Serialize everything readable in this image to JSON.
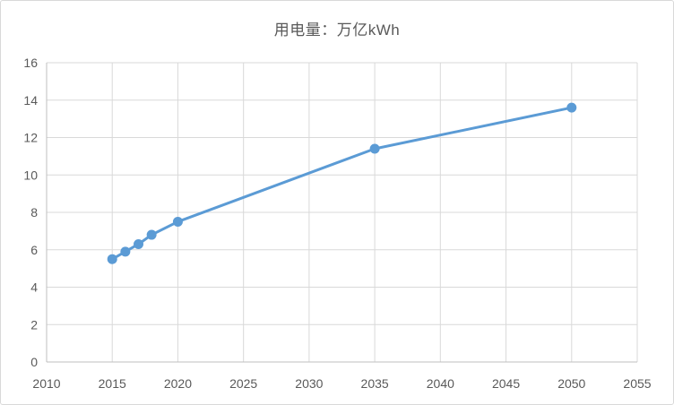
{
  "chart": {
    "title": "用电量：万亿kWh"
  },
  "chart_data": {
    "type": "line",
    "title": "用电量：万亿kWh",
    "xlabel": "",
    "ylabel": "",
    "xlim": [
      2010,
      2055
    ],
    "ylim": [
      0,
      16
    ],
    "x_ticks": [
      2010,
      2015,
      2020,
      2025,
      2030,
      2035,
      2040,
      2045,
      2050,
      2055
    ],
    "y_ticks": [
      0,
      2,
      4,
      6,
      8,
      10,
      12,
      14,
      16
    ],
    "grid": true,
    "legend_position": "none",
    "series": [
      {
        "name": "用电量",
        "x": [
          2015,
          2016,
          2017,
          2018,
          2020,
          2035,
          2050
        ],
        "y": [
          5.5,
          5.9,
          6.3,
          6.8,
          7.5,
          11.4,
          13.6
        ]
      }
    ],
    "colors": {
      "line": "#5B9BD5",
      "marker": "#5B9BD5",
      "gridline": "#D9D9D9",
      "axis_line": "#BFBFBF",
      "tick_text": "#595959",
      "title_text": "#595959",
      "background": "#FFFFFF",
      "border": "#D9D9D9"
    },
    "marker_shape": "circle"
  }
}
